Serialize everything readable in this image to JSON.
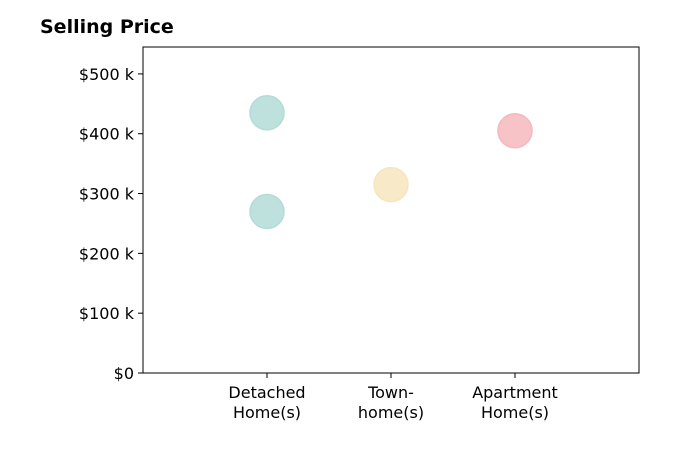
{
  "chart_data": {
    "type": "scatter",
    "title": "Selling Price",
    "categories": [
      "Detached\nHome(s)",
      "Town-\nhome(s)",
      "Apartment\nHome(s)"
    ],
    "points": [
      {
        "category": 0,
        "y": 435000,
        "color": "#b3dcd7"
      },
      {
        "category": 0,
        "y": 270000,
        "color": "#b3dcd7"
      },
      {
        "category": 1,
        "y": 315000,
        "color": "#f7e5bf"
      },
      {
        "category": 2,
        "y": 405000,
        "color": "#f6b8bd"
      }
    ],
    "yticks": [
      {
        "value": 0,
        "label": "$0"
      },
      {
        "value": 100000,
        "label": "$100 k"
      },
      {
        "value": 200000,
        "label": "$200 k"
      },
      {
        "value": 300000,
        "label": "$300 k"
      },
      {
        "value": 400000,
        "label": "$400 k"
      },
      {
        "value": 500000,
        "label": "$500 k"
      }
    ],
    "ylim": [
      0,
      545000
    ],
    "xlim": [
      -1,
      3
    ],
    "grid": false,
    "legend": "none"
  }
}
